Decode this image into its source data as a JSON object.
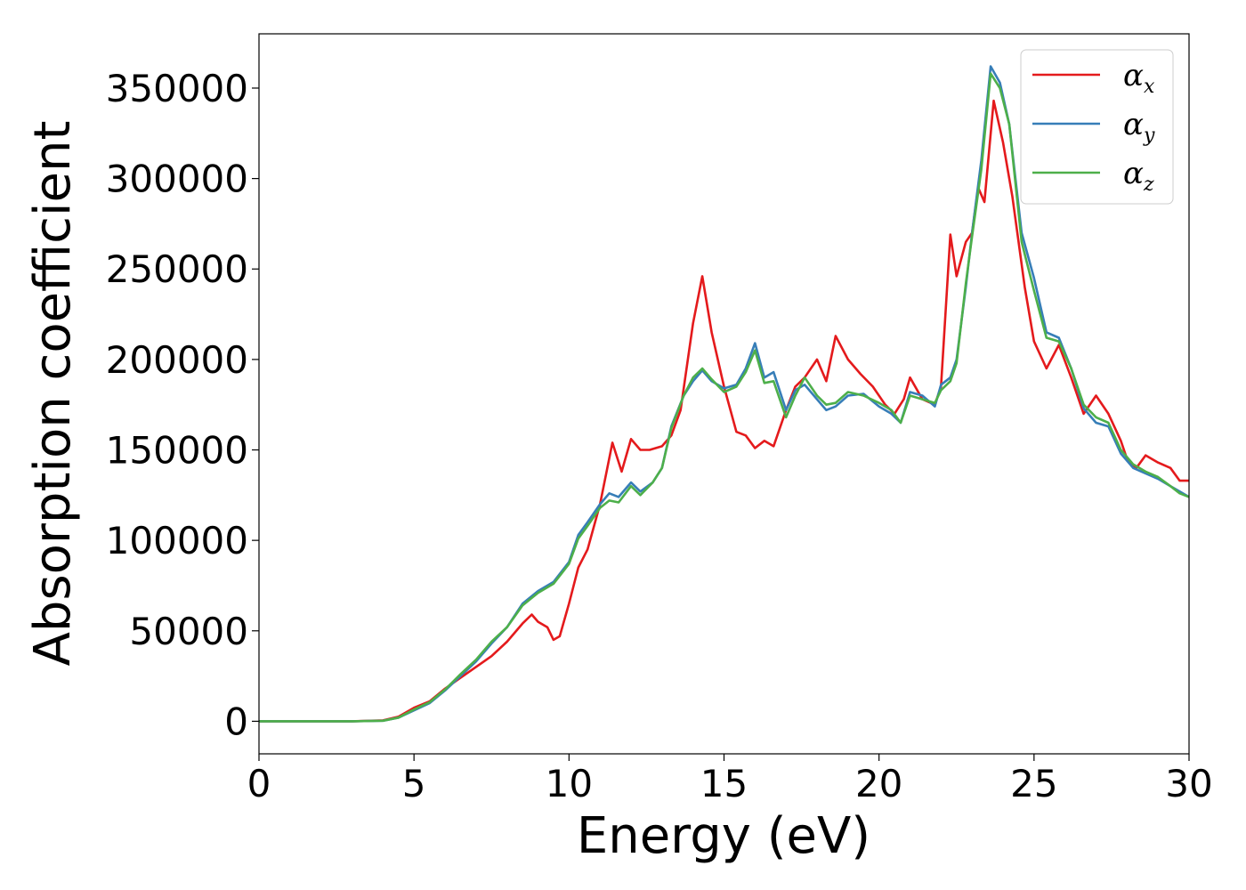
{
  "chart_data": {
    "type": "line",
    "title": "",
    "xlabel": "Energy (eV)",
    "ylabel": "Absorption coefficient",
    "xlim": [
      0,
      30
    ],
    "ylim": [
      -18000,
      380000
    ],
    "x_ticks": [
      0,
      5,
      10,
      15,
      20,
      25,
      30
    ],
    "x_tick_labels": [
      "0",
      "5",
      "10",
      "15",
      "20",
      "25",
      "30"
    ],
    "y_ticks": [
      0,
      50000,
      100000,
      150000,
      200000,
      250000,
      300000,
      350000
    ],
    "y_tick_labels": [
      "0",
      "50000",
      "100000",
      "150000",
      "200000",
      "250000",
      "300000",
      "350000"
    ],
    "grid": false,
    "legend_position": "top-right",
    "series": [
      {
        "name": "αx",
        "legend_base": "α",
        "legend_sub": "x",
        "color": "#e41a1c",
        "points": [
          [
            0,
            0
          ],
          [
            1,
            0
          ],
          [
            2,
            0
          ],
          [
            3,
            0
          ],
          [
            4,
            500
          ],
          [
            4.5,
            2500
          ],
          [
            5,
            7500
          ],
          [
            5.5,
            11000
          ],
          [
            6,
            18000
          ],
          [
            6.5,
            24000
          ],
          [
            7,
            30000
          ],
          [
            7.5,
            36000
          ],
          [
            8,
            44000
          ],
          [
            8.5,
            54000
          ],
          [
            8.8,
            59000
          ],
          [
            9,
            55000
          ],
          [
            9.3,
            52000
          ],
          [
            9.5,
            45000
          ],
          [
            9.7,
            47000
          ],
          [
            10,
            65000
          ],
          [
            10.3,
            85000
          ],
          [
            10.6,
            95000
          ],
          [
            11,
            120000
          ],
          [
            11.4,
            154000
          ],
          [
            11.7,
            138000
          ],
          [
            12,
            156000
          ],
          [
            12.3,
            150000
          ],
          [
            12.6,
            150000
          ],
          [
            13,
            152000
          ],
          [
            13.3,
            158000
          ],
          [
            13.6,
            172000
          ],
          [
            14,
            220000
          ],
          [
            14.3,
            246000
          ],
          [
            14.6,
            215000
          ],
          [
            15,
            185000
          ],
          [
            15.4,
            160000
          ],
          [
            15.7,
            158000
          ],
          [
            16,
            151000
          ],
          [
            16.3,
            155000
          ],
          [
            16.6,
            152000
          ],
          [
            17,
            172000
          ],
          [
            17.3,
            185000
          ],
          [
            17.6,
            190000
          ],
          [
            18,
            200000
          ],
          [
            18.3,
            188000
          ],
          [
            18.6,
            213000
          ],
          [
            19,
            200000
          ],
          [
            19.4,
            192000
          ],
          [
            19.8,
            185000
          ],
          [
            20.2,
            175000
          ],
          [
            20.5,
            170000
          ],
          [
            20.8,
            178000
          ],
          [
            21,
            190000
          ],
          [
            21.4,
            178000
          ],
          [
            21.8,
            175000
          ],
          [
            22,
            185000
          ],
          [
            22.3,
            269000
          ],
          [
            22.5,
            246000
          ],
          [
            22.8,
            265000
          ],
          [
            23,
            270000
          ],
          [
            23.2,
            295000
          ],
          [
            23.4,
            287000
          ],
          [
            23.7,
            343000
          ],
          [
            24,
            320000
          ],
          [
            24.3,
            290000
          ],
          [
            24.7,
            240000
          ],
          [
            25,
            210000
          ],
          [
            25.4,
            195000
          ],
          [
            25.8,
            208000
          ],
          [
            26.2,
            190000
          ],
          [
            26.6,
            170000
          ],
          [
            27,
            180000
          ],
          [
            27.4,
            170000
          ],
          [
            27.8,
            155000
          ],
          [
            28,
            145000
          ],
          [
            28.3,
            140000
          ],
          [
            28.6,
            147000
          ],
          [
            29,
            143000
          ],
          [
            29.4,
            140000
          ],
          [
            29.7,
            133000
          ],
          [
            30,
            133000
          ]
        ]
      },
      {
        "name": "αy",
        "legend_base": "α",
        "legend_sub": "y",
        "color": "#377eb8",
        "points": [
          [
            0,
            0
          ],
          [
            1,
            0
          ],
          [
            2,
            0
          ],
          [
            3,
            0
          ],
          [
            4,
            300
          ],
          [
            4.5,
            2000
          ],
          [
            5,
            6000
          ],
          [
            5.5,
            10000
          ],
          [
            6,
            17000
          ],
          [
            6.5,
            25000
          ],
          [
            7,
            33000
          ],
          [
            7.5,
            43000
          ],
          [
            8,
            52000
          ],
          [
            8.5,
            65000
          ],
          [
            9,
            72000
          ],
          [
            9.5,
            77000
          ],
          [
            10,
            88000
          ],
          [
            10.3,
            103000
          ],
          [
            10.6,
            110000
          ],
          [
            11,
            120000
          ],
          [
            11.3,
            126000
          ],
          [
            11.6,
            124000
          ],
          [
            12,
            132000
          ],
          [
            12.3,
            127000
          ],
          [
            12.7,
            132000
          ],
          [
            13,
            140000
          ],
          [
            13.3,
            163000
          ],
          [
            13.7,
            180000
          ],
          [
            14,
            188000
          ],
          [
            14.3,
            194000
          ],
          [
            14.6,
            188000
          ],
          [
            15,
            184000
          ],
          [
            15.4,
            186000
          ],
          [
            15.7,
            195000
          ],
          [
            16,
            209000
          ],
          [
            16.3,
            190000
          ],
          [
            16.6,
            193000
          ],
          [
            17,
            172000
          ],
          [
            17.3,
            183000
          ],
          [
            17.6,
            186000
          ],
          [
            18,
            178000
          ],
          [
            18.3,
            172000
          ],
          [
            18.6,
            174000
          ],
          [
            19,
            180000
          ],
          [
            19.5,
            181000
          ],
          [
            20,
            174000
          ],
          [
            20.4,
            170000
          ],
          [
            20.7,
            165000
          ],
          [
            21,
            182000
          ],
          [
            21.4,
            180000
          ],
          [
            21.8,
            174000
          ],
          [
            22,
            186000
          ],
          [
            22.3,
            190000
          ],
          [
            22.5,
            200000
          ],
          [
            22.8,
            240000
          ],
          [
            23,
            270000
          ],
          [
            23.3,
            310000
          ],
          [
            23.6,
            362000
          ],
          [
            23.9,
            353000
          ],
          [
            24.2,
            330000
          ],
          [
            24.6,
            270000
          ],
          [
            25,
            245000
          ],
          [
            25.4,
            215000
          ],
          [
            25.8,
            212000
          ],
          [
            26.2,
            195000
          ],
          [
            26.6,
            173000
          ],
          [
            27,
            165000
          ],
          [
            27.4,
            163000
          ],
          [
            27.8,
            148000
          ],
          [
            28.2,
            140000
          ],
          [
            28.6,
            137000
          ],
          [
            29,
            134000
          ],
          [
            29.4,
            130000
          ],
          [
            29.7,
            127000
          ],
          [
            30,
            124000
          ]
        ]
      },
      {
        "name": "αz",
        "legend_base": "α",
        "legend_sub": "z",
        "color": "#4daf4a",
        "points": [
          [
            0,
            0
          ],
          [
            1,
            0
          ],
          [
            2,
            0
          ],
          [
            3,
            0
          ],
          [
            4,
            300
          ],
          [
            4.5,
            2000
          ],
          [
            5,
            6500
          ],
          [
            5.5,
            10500
          ],
          [
            6,
            17500
          ],
          [
            6.5,
            26000
          ],
          [
            7,
            34000
          ],
          [
            7.5,
            44000
          ],
          [
            8,
            52000
          ],
          [
            8.5,
            64000
          ],
          [
            9,
            71000
          ],
          [
            9.5,
            76000
          ],
          [
            10,
            87000
          ],
          [
            10.3,
            101000
          ],
          [
            10.6,
            108000
          ],
          [
            11,
            118000
          ],
          [
            11.3,
            122000
          ],
          [
            11.6,
            121000
          ],
          [
            12,
            130000
          ],
          [
            12.3,
            125000
          ],
          [
            12.7,
            132000
          ],
          [
            13,
            140000
          ],
          [
            13.3,
            162000
          ],
          [
            13.7,
            180000
          ],
          [
            14,
            190000
          ],
          [
            14.3,
            195000
          ],
          [
            14.6,
            189000
          ],
          [
            15,
            182000
          ],
          [
            15.4,
            185000
          ],
          [
            15.7,
            193000
          ],
          [
            16,
            205000
          ],
          [
            16.3,
            187000
          ],
          [
            16.6,
            188000
          ],
          [
            17,
            168000
          ],
          [
            17.3,
            180000
          ],
          [
            17.6,
            190000
          ],
          [
            18,
            180000
          ],
          [
            18.3,
            175000
          ],
          [
            18.6,
            176000
          ],
          [
            19,
            182000
          ],
          [
            19.5,
            180000
          ],
          [
            20,
            176000
          ],
          [
            20.4,
            172000
          ],
          [
            20.7,
            165000
          ],
          [
            21,
            180000
          ],
          [
            21.4,
            178000
          ],
          [
            21.8,
            176000
          ],
          [
            22,
            183000
          ],
          [
            22.3,
            188000
          ],
          [
            22.5,
            198000
          ],
          [
            22.8,
            242000
          ],
          [
            23,
            268000
          ],
          [
            23.3,
            305000
          ],
          [
            23.6,
            358000
          ],
          [
            23.9,
            350000
          ],
          [
            24.2,
            330000
          ],
          [
            24.6,
            265000
          ],
          [
            25,
            238000
          ],
          [
            25.4,
            212000
          ],
          [
            25.8,
            210000
          ],
          [
            26.2,
            195000
          ],
          [
            26.6,
            175000
          ],
          [
            27,
            168000
          ],
          [
            27.4,
            165000
          ],
          [
            27.8,
            150000
          ],
          [
            28.2,
            142000
          ],
          [
            28.6,
            138000
          ],
          [
            29,
            135000
          ],
          [
            29.4,
            130000
          ],
          [
            29.7,
            126000
          ],
          [
            30,
            124000
          ]
        ]
      }
    ]
  }
}
